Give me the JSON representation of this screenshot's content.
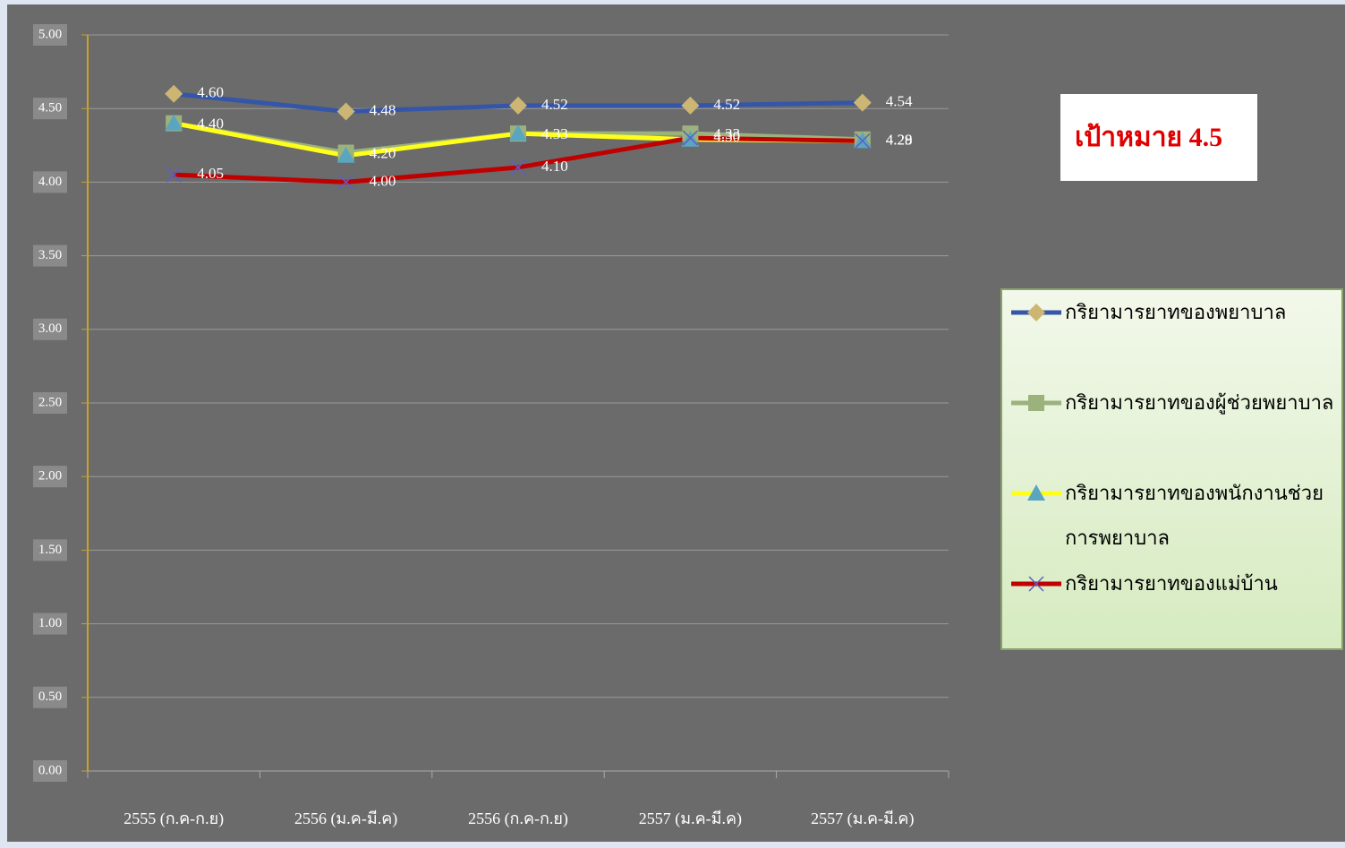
{
  "chart_data": {
    "type": "line",
    "categories": [
      "2555 (ก.ค-ก.ย)",
      "2556 (ม.ค-มี.ค)",
      "2556 (ก.ค-ก.ย)",
      "2557 (ม.ค-มี.ค)",
      "2557 (ม.ค-มี.ค)"
    ],
    "series": [
      {
        "name": "กริยามารยาทของพยาบาล",
        "color": "#3556a8",
        "marker": "diamond",
        "marker_color": "#cdb673",
        "values": [
          4.6,
          4.48,
          4.52,
          4.52,
          4.54
        ],
        "value_labels": [
          "4.60",
          "4.48",
          "4.52",
          "4.52",
          "4.54"
        ]
      },
      {
        "name": "กริยามารยาทของผู้ช่วยพยาบาล",
        "color": "#9cb27c",
        "marker": "square",
        "marker_color": "#9cb27c",
        "values": [
          4.4,
          4.2,
          4.33,
          4.33,
          4.29
        ],
        "value_labels": [
          "4.40",
          "4.20",
          "4.33",
          "4.33",
          "4.29"
        ]
      },
      {
        "name": "กริยามารยาทของพนักงานช่วยการพยาบาล",
        "color": "#ffff1a",
        "marker": "triangle",
        "marker_color": "#5aa6c0",
        "values": [
          4.4,
          4.18,
          4.33,
          4.29,
          4.28
        ]
      },
      {
        "name": "กริยามารยาทของแม่บ้าน",
        "color": "#c00000",
        "marker": "x",
        "marker_color": "#5b5fc8",
        "values": [
          4.05,
          4.0,
          4.1,
          4.3,
          4.28
        ],
        "value_labels": [
          "4.05",
          "4.00",
          "4.10",
          "4.30",
          "4.28"
        ]
      }
    ],
    "ylim": [
      0,
      5
    ],
    "yticks": [
      {
        "value": 0,
        "label": "0.00"
      },
      {
        "value": 0.5,
        "label": "0.50"
      },
      {
        "value": 1,
        "label": "1.00"
      },
      {
        "value": 1.5,
        "label": "1.50"
      },
      {
        "value": 2,
        "label": "2.00"
      },
      {
        "value": 2.5,
        "label": "2.50"
      },
      {
        "value": 3,
        "label": "3.00"
      },
      {
        "value": 3.5,
        "label": "3.50"
      },
      {
        "value": 4,
        "label": "4.00"
      },
      {
        "value": 4.5,
        "label": "4.50"
      },
      {
        "value": 5,
        "label": "5.00"
      }
    ],
    "grid": true,
    "annotation": "เป้าหมาย 4.5",
    "legend": "right"
  }
}
